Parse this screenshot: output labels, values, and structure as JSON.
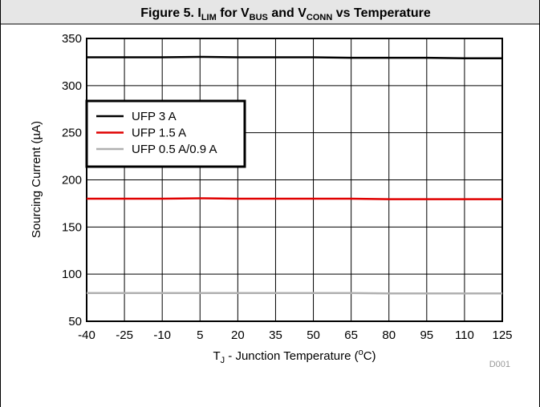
{
  "chart_data": {
    "type": "line",
    "title": [
      "Figure 5. I",
      "LIM",
      " for V",
      "BUS",
      " and V",
      "CONN",
      " vs Temperature"
    ],
    "x_label": [
      "T",
      "J",
      " - Junction Temperature (",
      "o",
      "C)"
    ],
    "y_label": "Sourcing Current (µA)",
    "annotations": [
      "D001"
    ],
    "x": [
      -40,
      -25,
      -10,
      5,
      20,
      35,
      50,
      65,
      80,
      95,
      110,
      125
    ],
    "series": [
      {
        "name": "UFP 3 A",
        "color": "#000000",
        "values": [
          330,
          330,
          330,
          330.5,
          330,
          330,
          330,
          329.5,
          329.5,
          329.5,
          329,
          329
        ]
      },
      {
        "name": "UFP 1.5 A",
        "color": "#e00000",
        "values": [
          180,
          180,
          180,
          180.5,
          180,
          180,
          180,
          180,
          179.5,
          179.5,
          179.5,
          179.5
        ]
      },
      {
        "name": "UFP 0.5 A/0.9 A",
        "color": "#b0b0b0",
        "values": [
          80,
          80,
          80,
          80,
          80,
          80,
          80,
          80,
          79.5,
          79.5,
          79.5,
          79.5
        ]
      }
    ],
    "xlim": [
      -40,
      125
    ],
    "xticks": [
      -40,
      -25,
      -10,
      5,
      20,
      35,
      50,
      65,
      80,
      95,
      110,
      125
    ],
    "ylim": [
      50,
      350
    ],
    "yticks": [
      50,
      100,
      150,
      200,
      250,
      300,
      350
    ],
    "grid": true,
    "legend": "upper left"
  }
}
